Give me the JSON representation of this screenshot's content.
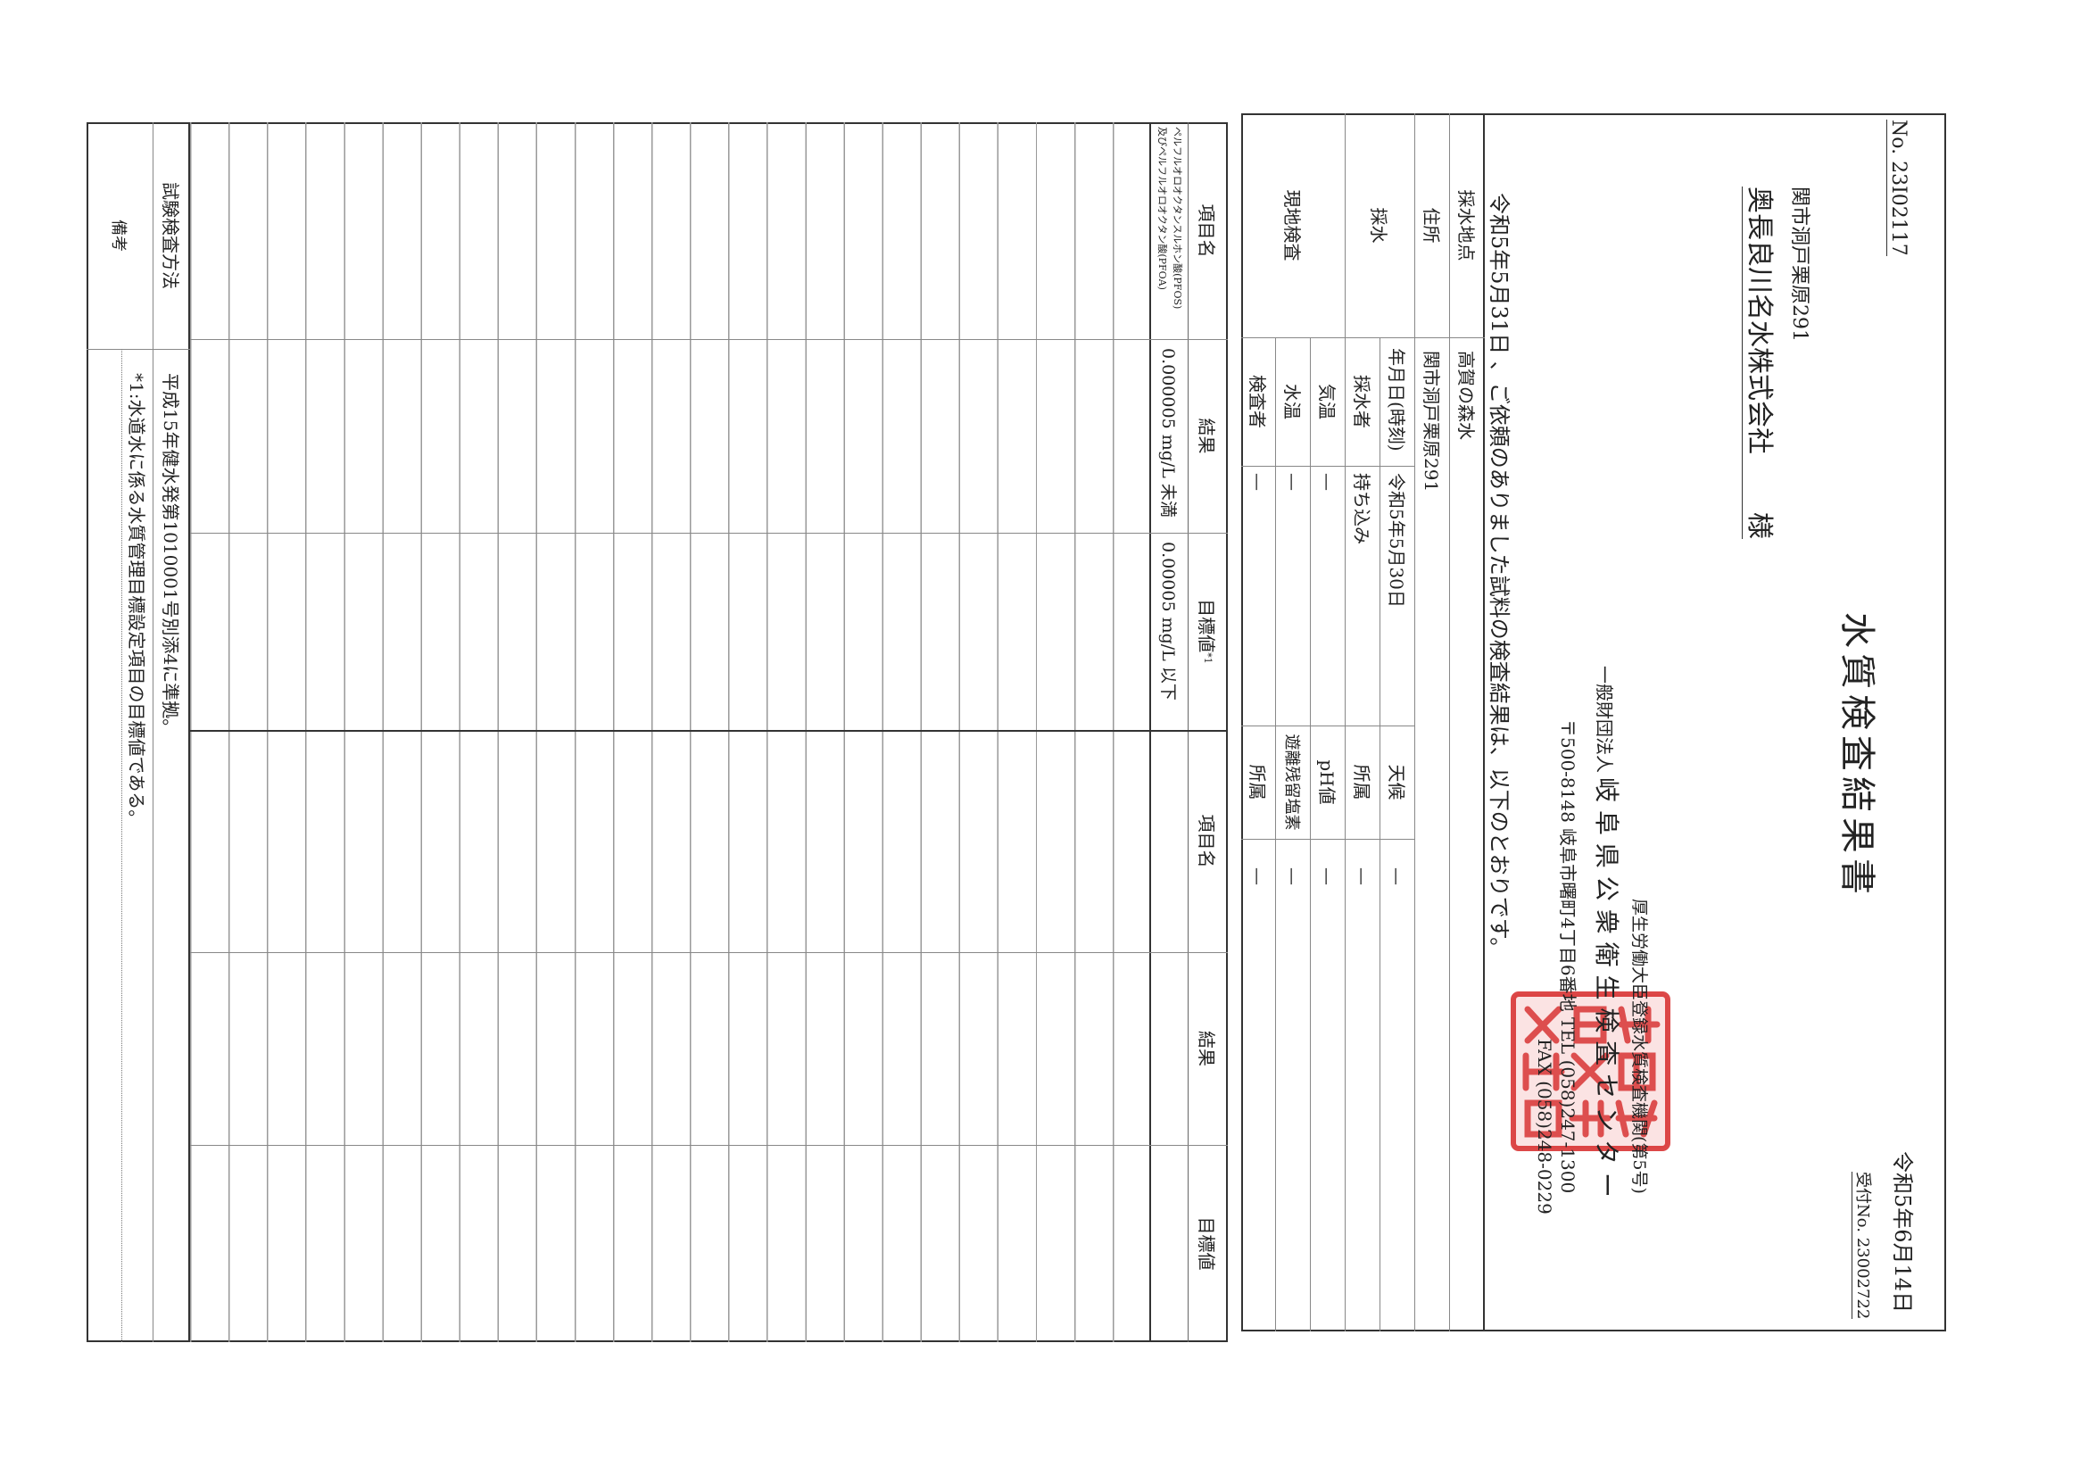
{
  "header": {
    "doc_no": "No. 23I02117",
    "recipient_address": "関市洞戸栗原291",
    "recipient_name": "奥長良川名水株式会社",
    "honorific": "様",
    "title": "水質検査結果書",
    "issue_date": "令和5年6月14日",
    "receipt_no": "受付No. 23002722"
  },
  "issuer": {
    "registration": "厚生労働大臣登録水質検査機関(第5号)",
    "org_type": "一般財団法人",
    "org_name": "岐 阜 県 公 衆 衛 生 検 査 セ ン タ ー",
    "address": "〒500-8148 岐阜市曙町4丁目6番地 TEL (058)247-1300",
    "fax": "FAX (058)248-0229",
    "stamp_text": "公衆衛生検査センター之印",
    "stamp_color": "#d62828"
  },
  "intro": "令和5年5月31日 、ご依頼のありました試料の検査結果は、以下のとおりです。",
  "sample": {
    "point_label": "採水地点",
    "point_value": "高賀の森水",
    "address_label": "住所",
    "address_value": "関市洞戸栗原291",
    "sampling_label": "採水",
    "date_label": "年月日(時刻)",
    "date_value": "令和5年5月30日",
    "weather_label": "天候",
    "weather_value": "—",
    "sampler_label": "採水者",
    "sampler_value": "持ち込み",
    "sampler_affil_label": "所属",
    "sampler_affil_value": "—",
    "field_label": "現地検査",
    "air_temp_label": "気温",
    "air_temp_value": "—",
    "ph_label": "pH値",
    "ph_value": "—",
    "water_temp_label": "水温",
    "water_temp_value": "—",
    "chlorine_label": "遊離残留塩素",
    "chlorine_value": "—",
    "inspector_label": "検査者",
    "inspector_value": "—",
    "inspector_affil_label": "所属",
    "inspector_affil_value": "—"
  },
  "results": {
    "headers_left": {
      "item": "項目名",
      "result": "結果",
      "target": "目標値",
      "target_note": "*1"
    },
    "headers_right": {
      "item": "項目名",
      "result": "結果",
      "target": "目標値"
    },
    "rows": [
      {
        "item_line1": "ペルフルオロオクタンスルホン酸(PFOS)",
        "item_line2": "及びペルフルオロオクタン酸(PFOA)",
        "result": "0.000005 mg/L 未満",
        "target": "0.00005 mg/L 以下"
      }
    ]
  },
  "method": {
    "label": "試験検査方法",
    "value": "平成15年健水発第1010001号別添4に準拠。"
  },
  "remarks": {
    "label": "備考",
    "value": "*1:水道水に係る水質管理目標設定項目の目標値である。"
  }
}
